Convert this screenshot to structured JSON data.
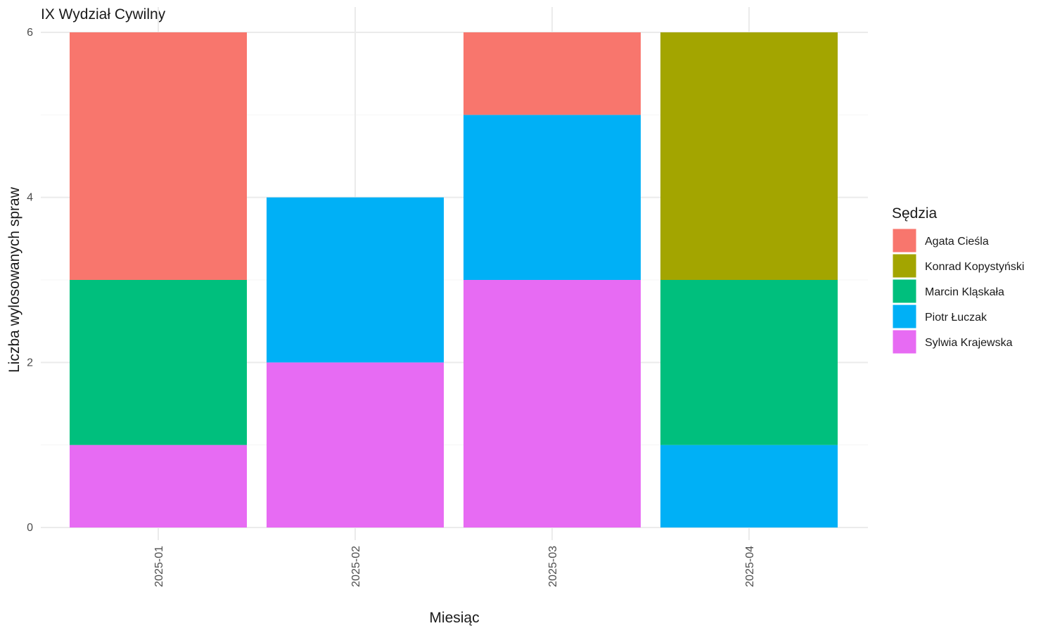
{
  "chart_data": {
    "type": "bar",
    "stacked": true,
    "title": "IX Wydział Cywilny",
    "xlabel": "Miesiąc",
    "ylabel": "Liczba wylosowanych spraw",
    "categories": [
      "2025-01",
      "2025-02",
      "2025-03",
      "2025-04"
    ],
    "ylim": [
      0,
      6
    ],
    "yticks": [
      0,
      2,
      4,
      6
    ],
    "grid": true,
    "legend": {
      "title": "Sędzia",
      "position": "right"
    },
    "series": [
      {
        "name": "Agata Cieśla",
        "color": "#F8766D",
        "values": [
          3,
          0,
          1,
          0
        ]
      },
      {
        "name": "Konrad Kopystyński",
        "color": "#A3A500",
        "values": [
          0,
          0,
          0,
          3
        ]
      },
      {
        "name": "Marcin Kląskała",
        "color": "#00BF7D",
        "values": [
          2,
          0,
          0,
          2
        ]
      },
      {
        "name": "Piotr Łuczak",
        "color": "#00B0F6",
        "values": [
          0,
          2,
          2,
          1
        ]
      },
      {
        "name": "Sylwia Krajewska",
        "color": "#E76BF3",
        "values": [
          1,
          2,
          3,
          0
        ]
      }
    ]
  }
}
